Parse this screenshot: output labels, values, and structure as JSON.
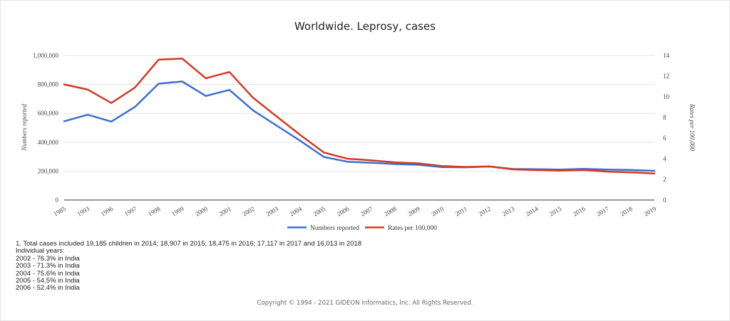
{
  "chart_data": {
    "type": "line",
    "title": "Worldwide. Leprosy, cases",
    "categories": [
      "1985",
      "1993",
      "1996",
      "1997",
      "1998",
      "1999",
      "2000",
      "2001",
      "2002",
      "2003",
      "2004",
      "2005",
      "2006",
      "2007",
      "2008",
      "2009",
      "2010",
      "2011",
      "2012",
      "2013",
      "2014",
      "2015",
      "2016",
      "2017",
      "2018",
      "2019"
    ],
    "series": [
      {
        "name": "Numbers reported",
        "axis": "left",
        "color": "#3b6fd0",
        "values": [
          545000,
          590000,
          543000,
          645000,
          805000,
          820000,
          720000,
          762000,
          620000,
          515000,
          410000,
          298000,
          265000,
          258000,
          249000,
          244000,
          228000,
          226000,
          232000,
          215000,
          213000,
          211000,
          216000,
          211000,
          208000,
          202000
        ]
      },
      {
        "name": "Rates per 100,000",
        "axis": "right",
        "color": "#d33a25",
        "values": [
          11.2,
          10.7,
          9.4,
          10.9,
          13.6,
          13.7,
          11.8,
          12.4,
          9.9,
          8.1,
          6.3,
          4.6,
          4.0,
          3.85,
          3.65,
          3.55,
          3.3,
          3.2,
          3.25,
          2.97,
          2.9,
          2.85,
          2.9,
          2.75,
          2.68,
          2.57
        ]
      }
    ],
    "y_left": {
      "label": "Numbers reported",
      "ylim": [
        0,
        1000000
      ],
      "ticks": [
        "0",
        "200,000",
        "400,000",
        "600,000",
        "800,000",
        "1,000,000"
      ]
    },
    "y_right": {
      "label": "Rates per 100,000",
      "ylim": [
        0,
        14
      ],
      "ticks": [
        "0",
        "2",
        "4",
        "6",
        "8",
        "10",
        "12",
        "14"
      ]
    },
    "legend_position": "bottom",
    "grid": true
  },
  "notes": [
    "1. Total cases included 19,185 children in 2014; 18,907 in 2015; 18,475 in 2016; 17,117 in 2017 and 16,013 in 2018",
    "Individual years:",
    "2002 - 76.3% in India",
    "2003 - 71.3% in India",
    "2004 - 75.6% in India",
    "2005 - 54.5% in India",
    "2006 - 52.4% in India"
  ],
  "copyright": "Copyright © 1994 - 2021 GIDEON Informatics, Inc. All Rights Reserved."
}
